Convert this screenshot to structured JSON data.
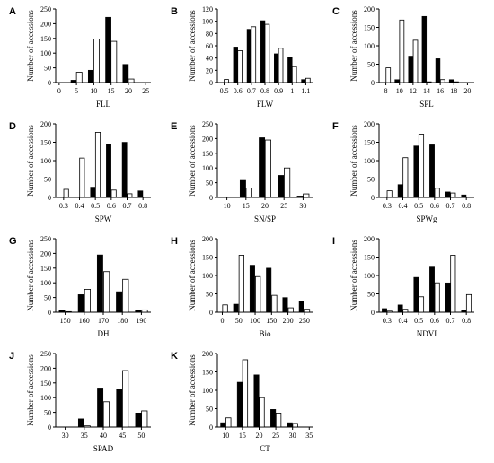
{
  "chart_data": [
    {
      "panel": "A",
      "type": "bar",
      "xlabel": "FLL",
      "ylabel": "Number of accessions",
      "ylim": [
        0,
        250
      ],
      "yticks": [
        0,
        50,
        100,
        150,
        200,
        250
      ],
      "xlim": [
        -1,
        26.5
      ],
      "xticks": [
        0,
        5,
        10,
        15,
        20,
        25
      ],
      "bar_width": 1.6,
      "series": [
        {
          "color": "#000000",
          "x": [
            4.2,
            9.2,
            14.2,
            19.2
          ],
          "values": [
            8,
            42,
            222,
            62
          ]
        },
        {
          "color": "#ffffff",
          "x": [
            5.8,
            10.8,
            15.8,
            20.8
          ],
          "values": [
            35,
            148,
            140,
            12
          ]
        }
      ]
    },
    {
      "panel": "B",
      "type": "bar",
      "xlabel": "FLW",
      "ylabel": "Number of accessions",
      "ylim": [
        0,
        120
      ],
      "yticks": [
        0,
        20,
        40,
        60,
        80,
        100,
        120
      ],
      "xlim": [
        0.45,
        1.15
      ],
      "xticks": [
        0.5,
        0.6,
        0.7,
        0.8,
        0.9,
        1.0,
        1.1
      ],
      "bar_width": 0.032,
      "series": [
        {
          "color": "#000000",
          "x": [
            0.584,
            0.684,
            0.784,
            0.884,
            0.984,
            1.084
          ],
          "values": [
            58,
            87,
            101,
            47,
            42,
            5
          ]
        },
        {
          "color": "#ffffff",
          "x": [
            0.516,
            0.616,
            0.716,
            0.816,
            0.916,
            1.016,
            1.116
          ],
          "values": [
            5,
            52,
            91,
            95,
            56,
            26,
            7
          ]
        }
      ]
    },
    {
      "panel": "C",
      "type": "bar",
      "xlabel": "SPL",
      "ylabel": "Number of accessions",
      "ylim": [
        0,
        200
      ],
      "yticks": [
        0,
        50,
        100,
        150,
        200
      ],
      "xlim": [
        7,
        21
      ],
      "xticks": [
        8,
        10,
        12,
        14,
        16,
        18,
        20
      ],
      "bar_width": 0.65,
      "series": [
        {
          "color": "#000000",
          "x": [
            9.65,
            11.65,
            13.65,
            15.65,
            17.65
          ],
          "values": [
            8,
            72,
            180,
            65,
            8
          ]
        },
        {
          "color": "#ffffff",
          "x": [
            8.35,
            10.35,
            12.35,
            14.35,
            16.35,
            18.35
          ],
          "values": [
            40,
            170,
            115,
            2,
            8,
            2
          ]
        }
      ]
    },
    {
      "panel": "D",
      "type": "bar",
      "xlabel": "SPW",
      "ylabel": "Number of accessions",
      "ylim": [
        0,
        200
      ],
      "yticks": [
        0,
        50,
        100,
        150,
        200
      ],
      "xlim": [
        0.25,
        0.85
      ],
      "xticks": [
        0.3,
        0.4,
        0.5,
        0.6,
        0.7,
        0.8
      ],
      "bar_width": 0.03,
      "series": [
        {
          "color": "#000000",
          "x": [
            0.484,
            0.584,
            0.684,
            0.784
          ],
          "values": [
            28,
            145,
            150,
            18
          ]
        },
        {
          "color": "#ffffff",
          "x": [
            0.316,
            0.416,
            0.516,
            0.616,
            0.716
          ],
          "values": [
            22,
            107,
            177,
            20,
            10
          ]
        }
      ]
    },
    {
      "panel": "E",
      "type": "bar",
      "xlabel": "SN/SP",
      "ylabel": "Number of accessions",
      "ylim": [
        0,
        250
      ],
      "yticks": [
        0,
        50,
        100,
        150,
        200,
        250
      ],
      "xlim": [
        7.5,
        32.5
      ],
      "xticks": [
        10,
        15,
        20,
        25,
        30
      ],
      "bar_width": 1.5,
      "series": [
        {
          "color": "#000000",
          "x": [
            14.2,
            19.2,
            24.2,
            29.2
          ],
          "values": [
            58,
            203,
            75,
            5
          ]
        },
        {
          "color": "#ffffff",
          "x": [
            15.8,
            20.8,
            25.8,
            30.8
          ],
          "values": [
            32,
            195,
            100,
            12
          ]
        }
      ]
    },
    {
      "panel": "F",
      "type": "bar",
      "xlabel": "SPWg",
      "ylabel": "Number of accessions",
      "ylim": [
        0,
        200
      ],
      "yticks": [
        0,
        50,
        100,
        150,
        200
      ],
      "xlim": [
        0.25,
        0.85
      ],
      "xticks": [
        0.3,
        0.4,
        0.5,
        0.6,
        0.7,
        0.8
      ],
      "bar_width": 0.03,
      "series": [
        {
          "color": "#000000",
          "x": [
            0.384,
            0.484,
            0.584,
            0.684,
            0.784
          ],
          "values": [
            35,
            140,
            143,
            15,
            7
          ]
        },
        {
          "color": "#ffffff",
          "x": [
            0.316,
            0.416,
            0.516,
            0.616,
            0.716
          ],
          "values": [
            18,
            108,
            172,
            25,
            12
          ]
        }
      ]
    },
    {
      "panel": "G",
      "type": "bar",
      "xlabel": "DH",
      "ylabel": "Number of accessions",
      "ylim": [
        0,
        250
      ],
      "yticks": [
        0,
        50,
        100,
        150,
        200,
        250
      ],
      "xlim": [
        145,
        195
      ],
      "xticks": [
        150,
        160,
        170,
        180,
        190
      ],
      "bar_width": 3,
      "series": [
        {
          "color": "#000000",
          "x": [
            148.3,
            158.3,
            168.3,
            178.3,
            188.3
          ],
          "values": [
            8,
            60,
            195,
            70,
            8
          ]
        },
        {
          "color": "#ffffff",
          "x": [
            151.7,
            161.7,
            171.7,
            181.7,
            191.7
          ],
          "values": [
            2,
            78,
            138,
            112,
            8
          ]
        }
      ]
    },
    {
      "panel": "H",
      "type": "bar",
      "xlabel": "Bio",
      "ylabel": "Number of accessions",
      "ylim": [
        0,
        200
      ],
      "yticks": [
        0,
        50,
        100,
        150,
        200
      ],
      "xlim": [
        -15,
        275
      ],
      "xticks": [
        0,
        50,
        100,
        150,
        200,
        250
      ],
      "bar_width": 15,
      "series": [
        {
          "color": "#000000",
          "x": [
            41.5,
            91.5,
            141.5,
            191.5,
            241.5
          ],
          "values": [
            22,
            128,
            120,
            40,
            30
          ]
        },
        {
          "color": "#ffffff",
          "x": [
            8.5,
            58.5,
            108.5,
            158.5,
            208.5,
            258.5
          ],
          "values": [
            20,
            155,
            97,
            46,
            12,
            8
          ]
        }
      ]
    },
    {
      "panel": "I",
      "type": "bar",
      "xlabel": "NDVI",
      "ylabel": "Number of accessions",
      "ylim": [
        0,
        200
      ],
      "yticks": [
        0,
        50,
        100,
        150,
        200
      ],
      "xlim": [
        0.25,
        0.85
      ],
      "xticks": [
        0.3,
        0.4,
        0.5,
        0.6,
        0.7,
        0.8
      ],
      "bar_width": 0.03,
      "series": [
        {
          "color": "#000000",
          "x": [
            0.284,
            0.384,
            0.484,
            0.584,
            0.684,
            0.784
          ],
          "values": [
            10,
            20,
            95,
            123,
            80,
            5
          ]
        },
        {
          "color": "#ffffff",
          "x": [
            0.316,
            0.416,
            0.516,
            0.616,
            0.716,
            0.816
          ],
          "values": [
            3,
            8,
            42,
            80,
            155,
            48
          ]
        }
      ]
    },
    {
      "panel": "J",
      "type": "bar",
      "xlabel": "SPAD",
      "ylabel": "Number of accessions",
      "ylim": [
        0,
        250
      ],
      "yticks": [
        0,
        50,
        100,
        150,
        200,
        250
      ],
      "xlim": [
        27.5,
        52.5
      ],
      "xticks": [
        30,
        35,
        40,
        45,
        50
      ],
      "bar_width": 1.5,
      "series": [
        {
          "color": "#000000",
          "x": [
            34.2,
            39.2,
            44.2,
            49.2
          ],
          "values": [
            28,
            133,
            128,
            48
          ]
        },
        {
          "color": "#ffffff",
          "x": [
            35.8,
            40.8,
            45.8,
            50.8
          ],
          "values": [
            4,
            86,
            192,
            55
          ]
        }
      ]
    },
    {
      "panel": "K",
      "type": "bar",
      "xlabel": "CT",
      "ylabel": "Number of accessions",
      "ylim": [
        0,
        200
      ],
      "yticks": [
        0,
        50,
        100,
        150,
        200
      ],
      "xlim": [
        7.5,
        36
      ],
      "xticks": [
        10,
        15,
        20,
        25,
        30,
        35
      ],
      "bar_width": 1.5,
      "series": [
        {
          "color": "#000000",
          "x": [
            9.2,
            14.2,
            19.2,
            24.2,
            29.2
          ],
          "values": [
            12,
            122,
            142,
            48,
            12
          ]
        },
        {
          "color": "#ffffff",
          "x": [
            10.8,
            15.8,
            20.8,
            25.8,
            30.8
          ],
          "values": [
            25,
            183,
            80,
            38,
            10
          ]
        }
      ]
    }
  ]
}
